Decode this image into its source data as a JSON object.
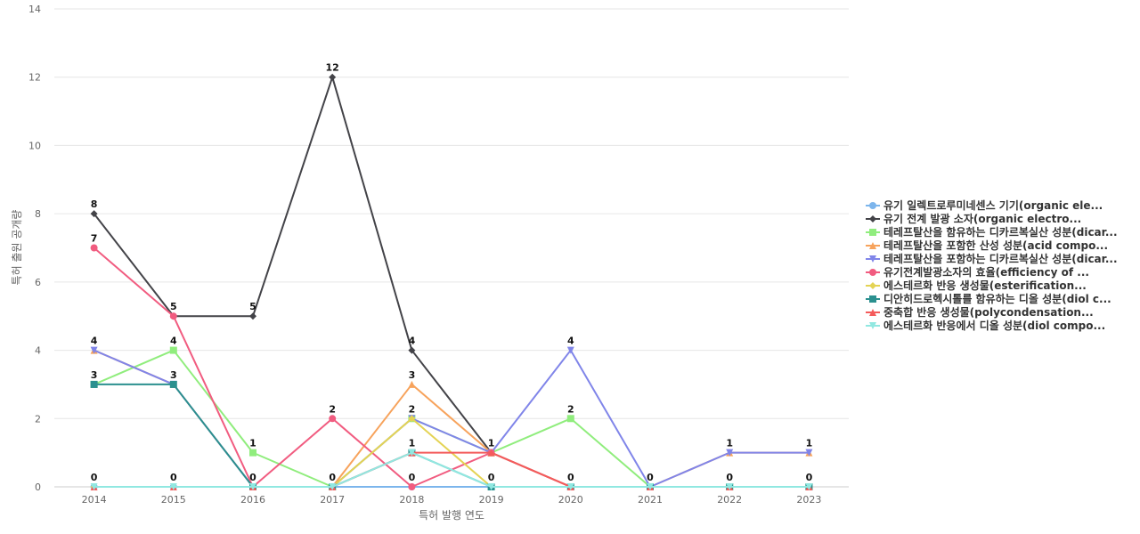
{
  "chart_data": {
    "type": "line",
    "xlabel": "특허 발행 연도",
    "ylabel": "특허 출원 공개량",
    "ylim": [
      0,
      14
    ],
    "yticks": [
      0,
      2,
      4,
      6,
      8,
      10,
      12,
      14
    ],
    "categories": [
      "2014",
      "2015",
      "2016",
      "2017",
      "2018",
      "2019",
      "2020",
      "2021",
      "2022",
      "2023"
    ],
    "grid": true,
    "legend_position": "right",
    "series": [
      {
        "name": "유기 일렉트로루미네센스 기기(organic ele...",
        "color": "#7cb5ec",
        "marker": "circle",
        "values": [
          0,
          0,
          0,
          0,
          0,
          0,
          0,
          0,
          0,
          0
        ]
      },
      {
        "name": "유기 전계 발광 소자(organic electro...",
        "color": "#434348",
        "marker": "diamond",
        "values": [
          8,
          5,
          5,
          12,
          4,
          1,
          0,
          0,
          0,
          0
        ]
      },
      {
        "name": "테레프탈산을 함유하는 디카르복실산 성분(dicar...",
        "color": "#90ed7d",
        "marker": "square",
        "values": [
          3,
          4,
          1,
          0,
          2,
          1,
          2,
          0,
          0,
          0
        ]
      },
      {
        "name": "테레프탈산을 포함한 산성 성분(acid compo...",
        "color": "#f7a35c",
        "marker": "triangle",
        "values": [
          4,
          3,
          0,
          0,
          3,
          1,
          0,
          0,
          1,
          1
        ]
      },
      {
        "name": "테레프탈산을 포함하는 디카르복실산 성분(dicar...",
        "color": "#8085e9",
        "marker": "triangle-down",
        "values": [
          4,
          3,
          0,
          0,
          2,
          1,
          4,
          0,
          1,
          1
        ]
      },
      {
        "name": "유기전계발광소자의 효율(efficiency of ...",
        "color": "#f15c80",
        "marker": "circle",
        "values": [
          7,
          5,
          0,
          2,
          0,
          1,
          0,
          0,
          0,
          0
        ]
      },
      {
        "name": "에스테르화 반응 생성물(esterification...",
        "color": "#e4d354",
        "marker": "diamond",
        "values": [
          0,
          0,
          0,
          0,
          2,
          0,
          0,
          0,
          0,
          0
        ]
      },
      {
        "name": "디안히드로헥시톨를 함유하는 디올 성분(diol c...",
        "color": "#2b908f",
        "marker": "square",
        "values": [
          3,
          3,
          0,
          0,
          1,
          0,
          0,
          0,
          0,
          0
        ]
      },
      {
        "name": "중축합 반응 생성물(polycondensation...",
        "color": "#f45b5b",
        "marker": "triangle",
        "values": [
          0,
          0,
          0,
          0,
          1,
          1,
          0,
          0,
          0,
          0
        ]
      },
      {
        "name": "에스테르화 반응에서 디올 성분(diol compo...",
        "color": "#91e8e1",
        "marker": "triangle-down",
        "values": [
          0,
          0,
          0,
          0,
          1,
          0,
          0,
          0,
          0,
          0
        ]
      }
    ],
    "data_labels": [
      {
        "x": "2014",
        "value": 0
      },
      {
        "x": "2014",
        "value": 8
      },
      {
        "x": "2014",
        "value": 7
      },
      {
        "x": "2014",
        "value": 4
      },
      {
        "x": "2014",
        "value": 3
      },
      {
        "x": "2015",
        "value": 0
      },
      {
        "x": "2015",
        "value": 5
      },
      {
        "x": "2015",
        "value": 4
      },
      {
        "x": "2015",
        "value": 3
      },
      {
        "x": "2016",
        "value": 0
      },
      {
        "x": "2016",
        "value": 5
      },
      {
        "x": "2016",
        "value": 1
      },
      {
        "x": "2017",
        "value": 0
      },
      {
        "x": "2017",
        "value": 12
      },
      {
        "x": "2017",
        "value": 2
      },
      {
        "x": "2018",
        "value": 0
      },
      {
        "x": "2018",
        "value": 4
      },
      {
        "x": "2018",
        "value": 3
      },
      {
        "x": "2018",
        "value": 2
      },
      {
        "x": "2018",
        "value": 1
      },
      {
        "x": "2019",
        "value": 0
      },
      {
        "x": "2019",
        "value": 1
      },
      {
        "x": "2020",
        "value": 0
      },
      {
        "x": "2020",
        "value": 4
      },
      {
        "x": "2020",
        "value": 2
      },
      {
        "x": "2021",
        "value": 0
      },
      {
        "x": "2022",
        "value": 0
      },
      {
        "x": "2022",
        "value": 1
      },
      {
        "x": "2023",
        "value": 0
      },
      {
        "x": "2023",
        "value": 1
      }
    ]
  }
}
